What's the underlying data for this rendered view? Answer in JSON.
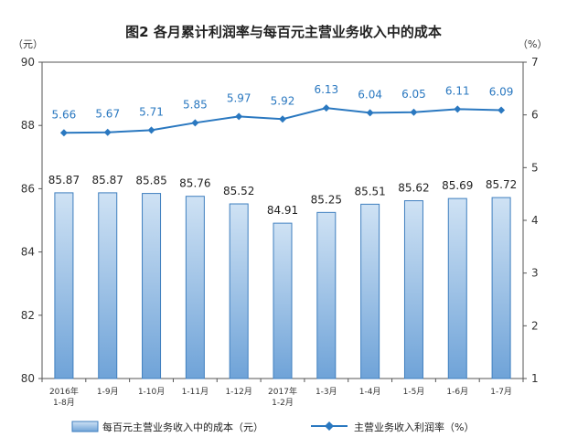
{
  "chart_data": {
    "type": "bar",
    "title": "图2  各月累计利润率与每百元主营业务收入中的成本",
    "left_unit": "（元）",
    "right_unit": "（%）",
    "categories": [
      [
        "2016年",
        "1-8月"
      ],
      [
        "1-9月"
      ],
      [
        "1-10月"
      ],
      [
        "1-11月"
      ],
      [
        "1-12月"
      ],
      [
        "2017年",
        "1-2月"
      ],
      [
        "1-3月"
      ],
      [
        "1-4月"
      ],
      [
        "1-5月"
      ],
      [
        "1-6月"
      ],
      [
        "1-7月"
      ]
    ],
    "series": [
      {
        "name": "每百元主营业务收入中的成本（元）",
        "type": "bar",
        "axis": "left",
        "values": [
          85.87,
          85.87,
          85.85,
          85.76,
          85.52,
          84.91,
          85.25,
          85.51,
          85.62,
          85.69,
          85.72
        ],
        "labels": [
          "85.87",
          "85.87",
          "85.85",
          "85.76",
          "85.52",
          "84.91",
          "85.25",
          "85.51",
          "85.62",
          "85.69",
          "85.72"
        ]
      },
      {
        "name": "主营业务收入利润率（%）",
        "type": "line",
        "axis": "right",
        "values": [
          5.66,
          5.67,
          5.71,
          5.85,
          5.97,
          5.92,
          6.13,
          6.04,
          6.05,
          6.11,
          6.09
        ],
        "labels": [
          "5.66",
          "5.67",
          "5.71",
          "5.85",
          "5.97",
          "5.92",
          "6.13",
          "6.04",
          "6.05",
          "6.11",
          "6.09"
        ]
      }
    ],
    "left_axis": {
      "min": 80,
      "max": 90,
      "ticks": [
        "80",
        "82",
        "84",
        "86",
        "88",
        "90"
      ]
    },
    "right_axis": {
      "min": 1,
      "max": 7,
      "ticks": [
        "1",
        "2",
        "3",
        "4",
        "5",
        "6",
        "7"
      ]
    },
    "grid": false,
    "legend": "bottom",
    "colors": {
      "bar_top": "#c6dcf1",
      "bar_bottom": "#6fa3d8",
      "bar_edge": "#3f7fbf",
      "line": "#2a78c0",
      "axis": "#555555"
    }
  }
}
